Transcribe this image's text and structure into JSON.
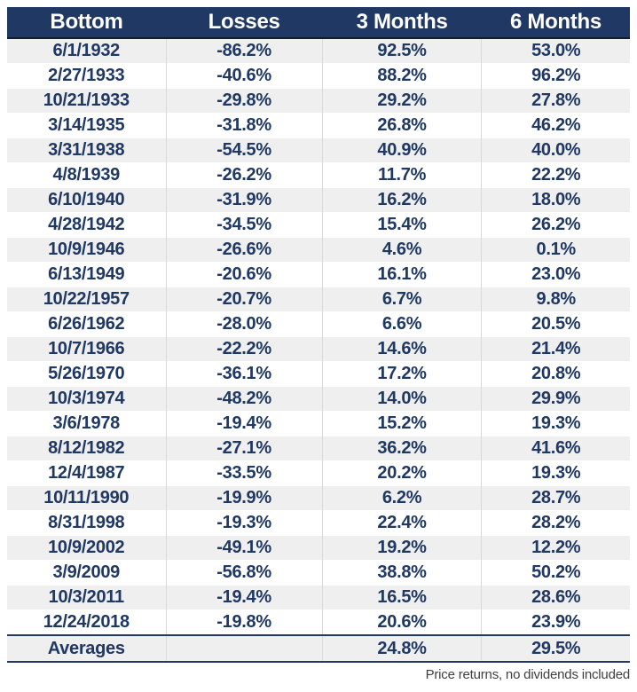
{
  "colors": {
    "header_bg": "#1f3864",
    "text": "#1f3864",
    "row_alt": "#efefef",
    "grid": "#d9d9d9",
    "header_border": "#141b2e",
    "note_text": "#404040"
  },
  "table": {
    "headers": [
      "Bottom",
      "Losses",
      "3 Months",
      "6 Months"
    ],
    "rows": [
      {
        "date": "6/1/1932",
        "loss": "-86.2%",
        "m3": "92.5%",
        "m6": "53.0%"
      },
      {
        "date": "2/27/1933",
        "loss": "-40.6%",
        "m3": "88.2%",
        "m6": "96.2%"
      },
      {
        "date": "10/21/1933",
        "loss": "-29.8%",
        "m3": "29.2%",
        "m6": "27.8%"
      },
      {
        "date": "3/14/1935",
        "loss": "-31.8%",
        "m3": "26.8%",
        "m6": "46.2%"
      },
      {
        "date": "3/31/1938",
        "loss": "-54.5%",
        "m3": "40.9%",
        "m6": "40.0%"
      },
      {
        "date": "4/8/1939",
        "loss": "-26.2%",
        "m3": "11.7%",
        "m6": "22.2%"
      },
      {
        "date": "6/10/1940",
        "loss": "-31.9%",
        "m3": "16.2%",
        "m6": "18.0%"
      },
      {
        "date": "4/28/1942",
        "loss": "-34.5%",
        "m3": "15.4%",
        "m6": "26.2%"
      },
      {
        "date": "10/9/1946",
        "loss": "-26.6%",
        "m3": "4.6%",
        "m6": "0.1%"
      },
      {
        "date": "6/13/1949",
        "loss": "-20.6%",
        "m3": "16.1%",
        "m6": "23.0%"
      },
      {
        "date": "10/22/1957",
        "loss": "-20.7%",
        "m3": "6.7%",
        "m6": "9.8%"
      },
      {
        "date": "6/26/1962",
        "loss": "-28.0%",
        "m3": "6.6%",
        "m6": "20.5%"
      },
      {
        "date": "10/7/1966",
        "loss": "-22.2%",
        "m3": "14.6%",
        "m6": "21.4%"
      },
      {
        "date": "5/26/1970",
        "loss": "-36.1%",
        "m3": "17.2%",
        "m6": "20.8%"
      },
      {
        "date": "10/3/1974",
        "loss": "-48.2%",
        "m3": "14.0%",
        "m6": "29.9%"
      },
      {
        "date": "3/6/1978",
        "loss": "-19.4%",
        "m3": "15.2%",
        "m6": "19.3%"
      },
      {
        "date": "8/12/1982",
        "loss": "-27.1%",
        "m3": "36.2%",
        "m6": "41.6%"
      },
      {
        "date": "12/4/1987",
        "loss": "-33.5%",
        "m3": "20.2%",
        "m6": "19.3%"
      },
      {
        "date": "10/11/1990",
        "loss": "-19.9%",
        "m3": "6.2%",
        "m6": "28.7%"
      },
      {
        "date": "8/31/1998",
        "loss": "-19.3%",
        "m3": "22.4%",
        "m6": "28.2%"
      },
      {
        "date": "10/9/2002",
        "loss": "-49.1%",
        "m3": "19.2%",
        "m6": "12.2%"
      },
      {
        "date": "3/9/2009",
        "loss": "-56.8%",
        "m3": "38.8%",
        "m6": "50.2%"
      },
      {
        "date": "10/3/2011",
        "loss": "-19.4%",
        "m3": "16.5%",
        "m6": "28.6%"
      },
      {
        "date": "12/24/2018",
        "loss": "-19.8%",
        "m3": "20.6%",
        "m6": "23.9%"
      }
    ],
    "averages": {
      "label": "Averages",
      "loss": "",
      "m3": "24.8%",
      "m6": "29.5%"
    }
  },
  "footer": {
    "note": "Price returns, no dividends included"
  },
  "chart_data": {
    "type": "table",
    "columns": [
      "Bottom",
      "Losses",
      "3 Months",
      "6 Months"
    ],
    "rows": [
      [
        "6/1/1932",
        -86.2,
        92.5,
        53.0
      ],
      [
        "2/27/1933",
        -40.6,
        88.2,
        96.2
      ],
      [
        "10/21/1933",
        -29.8,
        29.2,
        27.8
      ],
      [
        "3/14/1935",
        -31.8,
        26.8,
        46.2
      ],
      [
        "3/31/1938",
        -54.5,
        40.9,
        40.0
      ],
      [
        "4/8/1939",
        -26.2,
        11.7,
        22.2
      ],
      [
        "6/10/1940",
        -31.9,
        16.2,
        18.0
      ],
      [
        "4/28/1942",
        -34.5,
        15.4,
        26.2
      ],
      [
        "10/9/1946",
        -26.6,
        4.6,
        0.1
      ],
      [
        "6/13/1949",
        -20.6,
        16.1,
        23.0
      ],
      [
        "10/22/1957",
        -20.7,
        6.7,
        9.8
      ],
      [
        "6/26/1962",
        -28.0,
        6.6,
        20.5
      ],
      [
        "10/7/1966",
        -22.2,
        14.6,
        21.4
      ],
      [
        "5/26/1970",
        -36.1,
        17.2,
        20.8
      ],
      [
        "10/3/1974",
        -48.2,
        14.0,
        29.9
      ],
      [
        "3/6/1978",
        -19.4,
        15.2,
        19.3
      ],
      [
        "8/12/1982",
        -27.1,
        36.2,
        41.6
      ],
      [
        "12/4/1987",
        -33.5,
        20.2,
        19.3
      ],
      [
        "10/11/1990",
        -19.9,
        6.2,
        28.7
      ],
      [
        "8/31/1998",
        -19.3,
        22.4,
        28.2
      ],
      [
        "10/9/2002",
        -49.1,
        19.2,
        12.2
      ],
      [
        "3/9/2009",
        -56.8,
        38.8,
        50.2
      ],
      [
        "10/3/2011",
        -19.4,
        16.5,
        28.6
      ],
      [
        "12/24/2018",
        -19.8,
        20.6,
        23.9
      ]
    ],
    "averages": {
      "3 Months": 24.8,
      "6 Months": 29.5
    },
    "note": "Price returns, no dividends included"
  }
}
